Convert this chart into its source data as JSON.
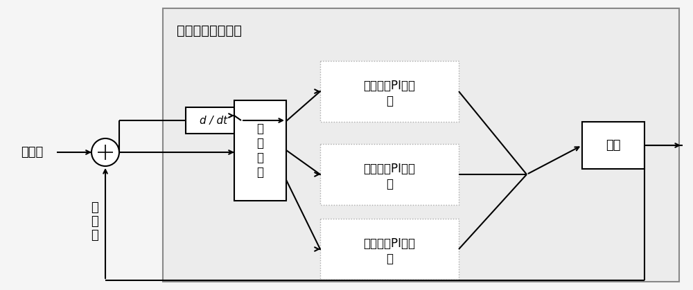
{
  "title": "变结构模糊控制器",
  "label_给定值": "给定値",
  "label_反馈值_line1": "反",
  "label_反馈值_line2": "馈",
  "label_反馈值_line3": "値",
  "label_d_dt": "d / dt",
  "label_特征识别": "特征识别",
  "label_特征识别_lines": [
    "特",
    "征",
    "识",
    "别"
  ],
  "label_加速": "加速模糊PI控制器",
  "label_减速": "减速模糊PI控制器",
  "label_微动": "微动模糊PI控制器",
  "label_电机": "电机",
  "label_加速_l1": "加速模糊PI控制",
  "label_加速_l2": "器",
  "label_减速_l1": "减速模糊PI控制",
  "label_减速_l2": "器",
  "label_微动_l1": "微动模糊PI控制",
  "label_微动_l2": "器",
  "bg_color": "#f5f5f5",
  "box_bg": "#ffffff",
  "outer_bg": "#ebebeb",
  "fontsize": 13,
  "fontsize_small": 12,
  "fontsize_title": 14
}
